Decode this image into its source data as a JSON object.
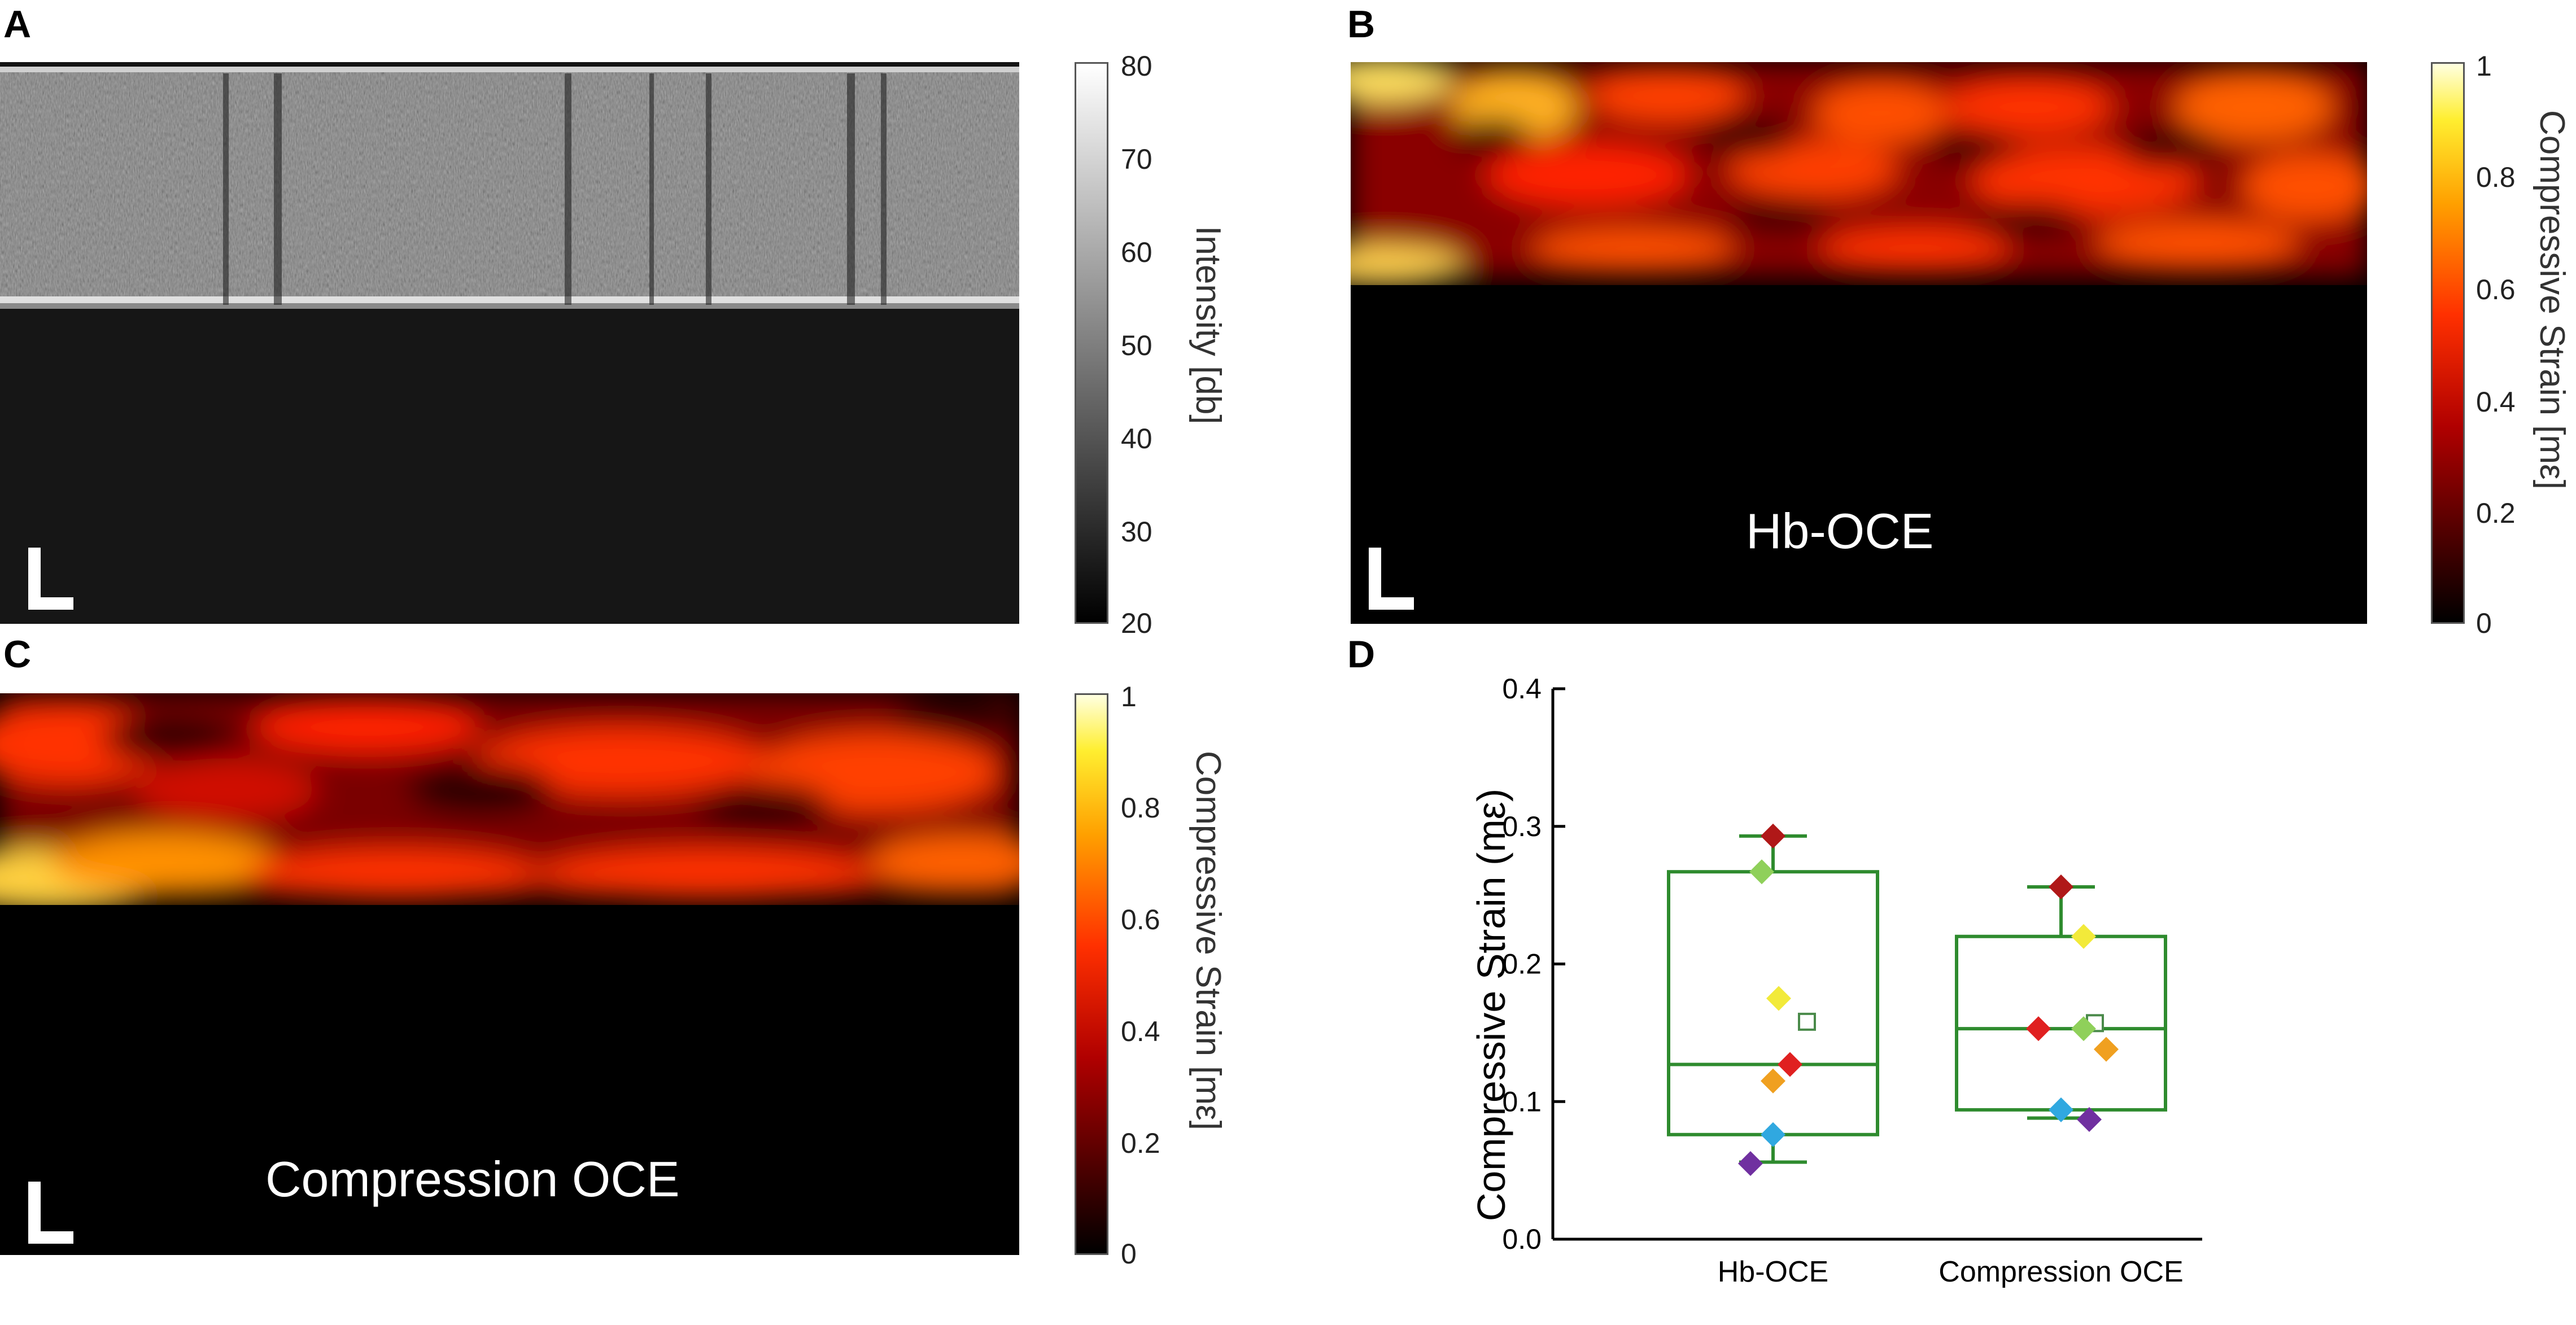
{
  "panels": {
    "A": {
      "letter": "A",
      "colorbar": {
        "title": "Intensity [db]",
        "ticks": [
          "80",
          "70",
          "60",
          "50",
          "40",
          "30",
          "20"
        ],
        "colormap": "gray"
      }
    },
    "B": {
      "letter": "B",
      "overlay": "Hb-OCE",
      "colorbar": {
        "title": "Compressive Strain [mε]",
        "ticks": [
          "1",
          "0.8",
          "0.6",
          "0.4",
          "0.2",
          "0"
        ],
        "colormap": "hot"
      }
    },
    "C": {
      "letter": "C",
      "overlay": "Compression OCE",
      "colorbar": {
        "title": "Compressive Strain [mε]",
        "ticks": [
          "1",
          "0.8",
          "0.6",
          "0.4",
          "0.2",
          "0"
        ],
        "colormap": "hot"
      }
    },
    "D": {
      "letter": "D"
    }
  },
  "chart_data": {
    "type": "box",
    "ylabel": "Compressive Strain (mε)",
    "ylim": [
      0.0,
      0.4
    ],
    "yticks": [
      "0.0",
      "0.1",
      "0.2",
      "0.3",
      "0.4"
    ],
    "categories": [
      "Hb-OCE",
      "Compression OCE"
    ],
    "box_color": "#2e8b2e",
    "boxes": [
      {
        "q1": 0.076,
        "median": 0.127,
        "q3": 0.267,
        "whisker_low": 0.056,
        "whisker_high": 0.293,
        "mean": 0.158
      },
      {
        "q1": 0.094,
        "median": 0.153,
        "q3": 0.22,
        "whisker_low": 0.088,
        "whisker_high": 0.256,
        "mean": 0.157
      }
    ],
    "points": [
      [
        {
          "y": 0.293,
          "color": "#b01818"
        },
        {
          "y": 0.267,
          "color": "#8fd05a"
        },
        {
          "y": 0.175,
          "color": "#f2ea3a"
        },
        {
          "y": 0.127,
          "color": "#e02020"
        },
        {
          "y": 0.115,
          "color": "#f0a020"
        },
        {
          "y": 0.076,
          "color": "#30a8e0"
        },
        {
          "y": 0.055,
          "color": "#7030a0"
        }
      ],
      [
        {
          "y": 0.256,
          "color": "#b01818"
        },
        {
          "y": 0.22,
          "color": "#f2ea3a"
        },
        {
          "y": 0.153,
          "color": "#e02020"
        },
        {
          "y": 0.153,
          "color": "#8fd05a"
        },
        {
          "y": 0.138,
          "color": "#f0a020"
        },
        {
          "y": 0.094,
          "color": "#30a8e0"
        },
        {
          "y": 0.087,
          "color": "#7030a0"
        }
      ]
    ]
  }
}
